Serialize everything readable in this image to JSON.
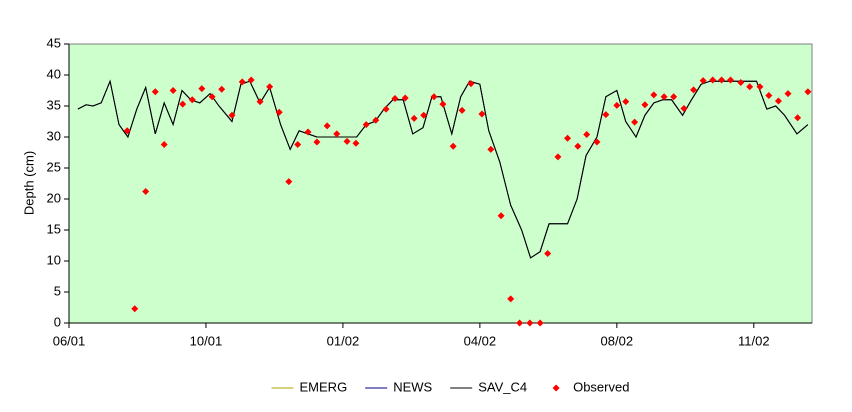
{
  "chart_data": {
    "type": "line",
    "ylabel": "Depth (cm)",
    "xlim": [
      0,
      108.5
    ],
    "ylim": [
      0,
      45
    ],
    "xticks": [
      {
        "value": 0,
        "label": "06/01"
      },
      {
        "value": 20,
        "label": "10/01"
      },
      {
        "value": 40,
        "label": "01/02"
      },
      {
        "value": 60,
        "label": "04/02"
      },
      {
        "value": 80,
        "label": "08/02"
      },
      {
        "value": 100,
        "label": "11/02"
      }
    ],
    "yticks": [
      0,
      5,
      10,
      15,
      20,
      25,
      30,
      35,
      40,
      45
    ],
    "legend": "bottom",
    "background": "#ccffcc",
    "x": [
      1.3,
      2.5,
      3.5,
      4.7,
      6.0,
      7.3,
      8.6,
      9.9,
      11.2,
      12.6,
      13.9,
      15.2,
      16.5,
      17.8,
      19.1,
      20.6,
      21.9,
      23.8,
      25.1,
      26.4,
      27.9,
      29.3,
      30.9,
      32.3,
      33.6,
      34.9,
      36.2,
      37.7,
      39.1,
      40.6,
      42.0,
      43.4,
      44.7,
      46.0,
      47.3,
      48.8,
      50.2,
      51.7,
      53.0,
      54.3,
      55.9,
      57.2,
      58.5,
      60.0,
      61.3,
      62.9,
      64.5,
      66.1,
      67.4,
      68.8,
      70.1,
      71.5,
      72.8,
      74.2,
      75.5,
      77.1,
      78.4,
      80.0,
      81.3,
      82.8,
      84.1,
      85.4,
      86.7,
      88.0,
      89.6,
      90.9,
      92.3,
      93.6,
      95.0,
      96.4,
      97.7,
      99.1,
      100.4,
      101.9,
      103.2,
      104.5,
      106.3,
      107.9
    ],
    "series": [
      {
        "name": "EMERG",
        "color": "#a8a800",
        "values": [
          34.5,
          35.2,
          35,
          35.5,
          39,
          32,
          30,
          34.5,
          38,
          30.5,
          35.5,
          32,
          37.5,
          36,
          35.5,
          37,
          35,
          32.5,
          38.5,
          39,
          35.5,
          38,
          32,
          28,
          31,
          30.5,
          30,
          30,
          30,
          30,
          30,
          32,
          32.5,
          34.5,
          36,
          36,
          30.5,
          31.5,
          36.5,
          36.5,
          30.5,
          36.5,
          39,
          38.5,
          31,
          26,
          19,
          15,
          10.5,
          11.5,
          16,
          16,
          16,
          20,
          27,
          30,
          36.5,
          37.5,
          32.5,
          30,
          33.5,
          35.5,
          36,
          36,
          33.5,
          36,
          38.5,
          39,
          39,
          39,
          39,
          39,
          39,
          34.5,
          35,
          33.5,
          30.5,
          32
        ]
      },
      {
        "name": "NEWS",
        "color": "#000080",
        "values": [
          34.5,
          35.2,
          35,
          35.5,
          39,
          32,
          30,
          34.5,
          38,
          30.5,
          35.5,
          32,
          37.5,
          36,
          35.5,
          37,
          35,
          32.5,
          38.5,
          39,
          35.5,
          38,
          32,
          28,
          31,
          30.5,
          30,
          30,
          30,
          30,
          30,
          32,
          32.5,
          34.5,
          36,
          36,
          30.5,
          31.5,
          36.5,
          36.5,
          30.5,
          36.5,
          39,
          38.5,
          31,
          26,
          19,
          15,
          10.5,
          11.5,
          16,
          16,
          16,
          20,
          27,
          30,
          36.5,
          37.5,
          32.5,
          30,
          33.5,
          35.5,
          36,
          36,
          33.5,
          36,
          38.5,
          39,
          39,
          39,
          39,
          39,
          39,
          34.5,
          35,
          33.5,
          30.5,
          32
        ]
      },
      {
        "name": "SAV_C4",
        "color": "#000000",
        "values": [
          34.5,
          35.2,
          35,
          35.5,
          39,
          32,
          30,
          34.5,
          38,
          30.5,
          35.5,
          32,
          37.5,
          36,
          35.5,
          37,
          35,
          32.5,
          38.5,
          39,
          35.5,
          38,
          32,
          28,
          31,
          30.5,
          30,
          30,
          30,
          30,
          30,
          32,
          32.5,
          34.5,
          36,
          36,
          30.5,
          31.5,
          36.5,
          36.5,
          30.5,
          36.5,
          39,
          38.5,
          31,
          26,
          19,
          15,
          10.5,
          11.5,
          16,
          16,
          16,
          20,
          27,
          30,
          36.5,
          37.5,
          32.5,
          30,
          33.5,
          35.5,
          36,
          36,
          33.5,
          36,
          38.5,
          39,
          39,
          39,
          39,
          39,
          39,
          34.5,
          35,
          33.5,
          30.5,
          32
        ]
      },
      {
        "name": "Observed",
        "color": "#ff0000",
        "marker": "diamond",
        "x": [
          8.5,
          9.6,
          11.2,
          12.6,
          13.9,
          15.2,
          16.6,
          18.0,
          19.4,
          20.9,
          22.3,
          23.8,
          25.3,
          26.6,
          27.9,
          29.3,
          30.7,
          32.1,
          33.4,
          34.9,
          36.2,
          37.7,
          39.1,
          40.6,
          41.9,
          43.4,
          44.8,
          46.3,
          47.6,
          49.1,
          50.4,
          51.8,
          53.3,
          54.6,
          56.1,
          57.4,
          58.7,
          60.3,
          61.6,
          63.1,
          64.5,
          65.8,
          67.3,
          68.8,
          69.9,
          71.4,
          72.8,
          74.3,
          75.6,
          77.1,
          78.4,
          80.0,
          81.3,
          82.6,
          84.1,
          85.4,
          86.9,
          88.3,
          89.8,
          91.2,
          92.6,
          94.0,
          95.3,
          96.6,
          98.1,
          99.4,
          100.9,
          102.2,
          103.6,
          105.0,
          106.4,
          107.9
        ],
        "values": [
          31,
          2.3,
          21.2,
          37.3,
          28.8,
          37.5,
          35.3,
          36,
          37.8,
          36.5,
          37.7,
          33.5,
          38.9,
          39.2,
          35.7,
          38.1,
          34,
          22.8,
          28.8,
          30.8,
          29.2,
          31.8,
          30.5,
          29.3,
          29,
          32,
          32.7,
          34.5,
          36.2,
          36.3,
          33,
          33.5,
          36.5,
          35.3,
          28.5,
          34.3,
          38.6,
          33.7,
          28,
          17.3,
          3.9,
          0,
          0,
          0,
          11.2,
          26.8,
          29.8,
          28.5,
          30.4,
          29.2,
          33.6,
          35.1,
          35.7,
          32.4,
          35.2,
          36.8,
          36.5,
          36.5,
          34.6,
          37.6,
          39.1,
          39.2,
          39.2,
          39.2,
          38.8,
          38.1,
          38.1,
          36.7,
          35.8,
          37,
          33.1,
          37.3
        ]
      }
    ]
  }
}
